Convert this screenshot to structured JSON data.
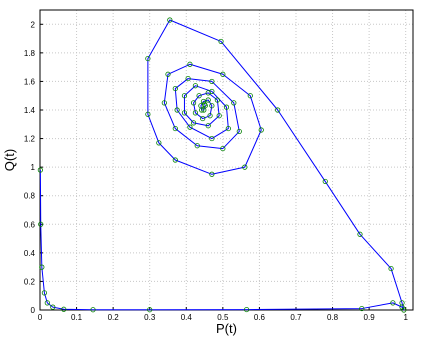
{
  "chart_data": {
    "type": "line",
    "xlabel": "P(t)",
    "ylabel": "Q(t)",
    "xlim": [
      0,
      1.02
    ],
    "ylim": [
      0,
      2.1
    ],
    "xticks": [
      "0",
      "0.1",
      "0.2",
      "0.3",
      "0.4",
      "0.5",
      "0.6",
      "0.7",
      "0.8",
      "0.9",
      "1"
    ],
    "yticks": [
      "0",
      "0.2",
      "0.4",
      "0.6",
      "0.8",
      "1",
      "1.2",
      "1.4",
      "1.6",
      "1.8",
      "2"
    ],
    "grid": true,
    "legend": "none",
    "line_color": "#0000ff",
    "marker_color": "#008000",
    "marker": "circle",
    "series": [
      {
        "x": [
          0.001,
          0.002,
          0.005,
          0.012,
          0.02,
          0.035,
          0.065,
          0.145,
          0.3,
          0.565,
          0.88,
          0.965,
          0.99,
          0.995,
          0.99,
          0.96,
          0.875,
          0.78,
          0.65,
          0.495,
          0.355,
          0.295,
          0.295,
          0.325,
          0.37,
          0.47,
          0.56,
          0.605,
          0.575,
          0.5,
          0.41,
          0.35,
          0.34,
          0.37,
          0.43,
          0.5,
          0.545,
          0.53,
          0.47,
          0.405,
          0.37,
          0.375,
          0.41,
          0.47,
          0.515,
          0.51,
          0.47,
          0.425,
          0.395,
          0.395,
          0.42,
          0.46,
          0.49,
          0.485,
          0.46,
          0.435,
          0.42,
          0.425,
          0.445,
          0.465,
          0.47,
          0.46,
          0.447,
          0.44,
          0.442,
          0.448,
          0.452,
          0.45
        ],
        "y": [
          0.98,
          0.6,
          0.3,
          0.12,
          0.05,
          0.02,
          0.005,
          0.002,
          0.002,
          0.003,
          0.01,
          0.05,
          0.02,
          0.0,
          0.05,
          0.29,
          0.53,
          0.9,
          1.4,
          1.88,
          2.03,
          1.76,
          1.37,
          1.17,
          1.05,
          0.95,
          1.0,
          1.26,
          1.5,
          1.65,
          1.72,
          1.65,
          1.45,
          1.27,
          1.15,
          1.13,
          1.25,
          1.45,
          1.6,
          1.62,
          1.55,
          1.4,
          1.28,
          1.2,
          1.27,
          1.42,
          1.53,
          1.57,
          1.5,
          1.38,
          1.31,
          1.29,
          1.36,
          1.47,
          1.52,
          1.5,
          1.45,
          1.38,
          1.34,
          1.36,
          1.43,
          1.47,
          1.46,
          1.43,
          1.4,
          1.4,
          1.43,
          1.44
        ]
      }
    ]
  }
}
